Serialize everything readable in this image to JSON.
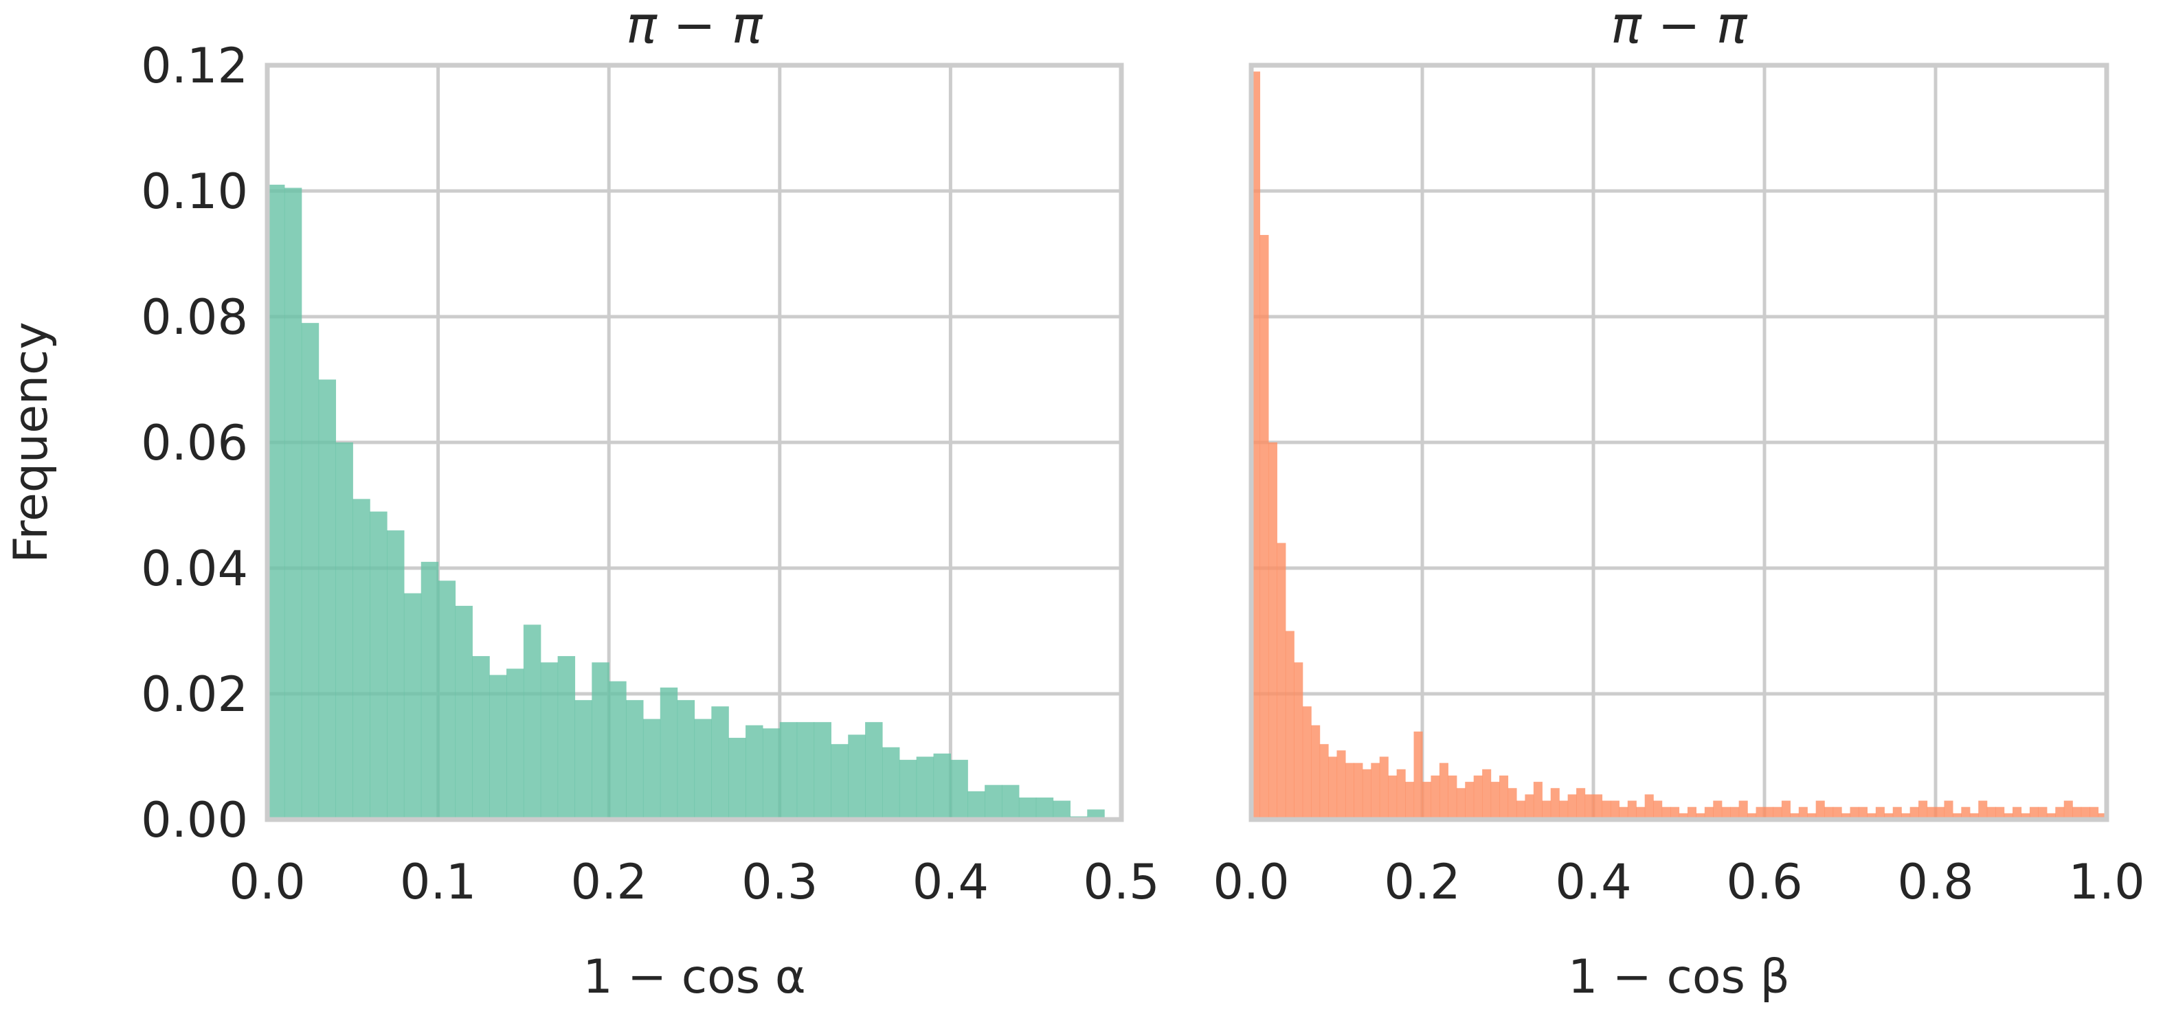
{
  "chart_data": [
    {
      "type": "bar",
      "title": "π − π",
      "xlabel": "1 − cos α",
      "ylabel": "Frequency",
      "xlim": [
        0.0,
        0.5
      ],
      "ylim": [
        0.0,
        0.12
      ],
      "grid": true,
      "color": "#66c2a5",
      "bin_width": 0.01,
      "bin_start": 0.0,
      "x_ticks": [
        "0.0",
        "0.1",
        "0.2",
        "0.3",
        "0.4",
        "0.5"
      ],
      "y_ticks": [
        "0.00",
        "0.02",
        "0.04",
        "0.06",
        "0.08",
        "0.10",
        "0.12"
      ],
      "values": [
        0.101,
        0.1005,
        0.079,
        0.07,
        0.06,
        0.051,
        0.049,
        0.046,
        0.036,
        0.041,
        0.038,
        0.034,
        0.026,
        0.023,
        0.024,
        0.031,
        0.025,
        0.026,
        0.019,
        0.025,
        0.022,
        0.019,
        0.016,
        0.021,
        0.019,
        0.016,
        0.018,
        0.013,
        0.015,
        0.0145,
        0.0155,
        0.0155,
        0.0155,
        0.012,
        0.0135,
        0.0155,
        0.0115,
        0.0095,
        0.01,
        0.0105,
        0.0095,
        0.0045,
        0.0055,
        0.0055,
        0.0035,
        0.0035,
        0.003,
        0.0005,
        0.0016
      ]
    },
    {
      "type": "bar",
      "title": "π − π",
      "xlabel": "1 − cos β",
      "ylabel": "",
      "xlim": [
        0.0,
        1.0
      ],
      "ylim": [
        0.0,
        0.12
      ],
      "grid": true,
      "color": "#fc8d62",
      "bin_width": 0.01,
      "bin_start": 0.0,
      "x_ticks": [
        "0.0",
        "0.2",
        "0.4",
        "0.6",
        "0.8",
        "1.0"
      ],
      "y_ticks": [],
      "values": [
        0.119,
        0.093,
        0.06,
        0.044,
        0.03,
        0.025,
        0.018,
        0.015,
        0.012,
        0.01,
        0.011,
        0.009,
        0.009,
        0.008,
        0.009,
        0.01,
        0.007,
        0.008,
        0.006,
        0.014,
        0.006,
        0.007,
        0.009,
        0.007,
        0.005,
        0.006,
        0.007,
        0.008,
        0.006,
        0.007,
        0.005,
        0.003,
        0.004,
        0.006,
        0.003,
        0.005,
        0.003,
        0.004,
        0.005,
        0.004,
        0.004,
        0.003,
        0.003,
        0.002,
        0.003,
        0.002,
        0.004,
        0.003,
        0.002,
        0.002,
        0.001,
        0.002,
        0.001,
        0.002,
        0.003,
        0.002,
        0.002,
        0.003,
        0.001,
        0.002,
        0.002,
        0.002,
        0.003,
        0.001,
        0.002,
        0.001,
        0.003,
        0.002,
        0.002,
        0.001,
        0.002,
        0.002,
        0.001,
        0.002,
        0.001,
        0.002,
        0.001,
        0.002,
        0.003,
        0.002,
        0.002,
        0.003,
        0.001,
        0.002,
        0.001,
        0.003,
        0.002,
        0.002,
        0.001,
        0.002,
        0.001,
        0.002,
        0.002,
        0.001,
        0.002,
        0.003,
        0.002,
        0.002,
        0.002,
        0.001
      ]
    }
  ]
}
